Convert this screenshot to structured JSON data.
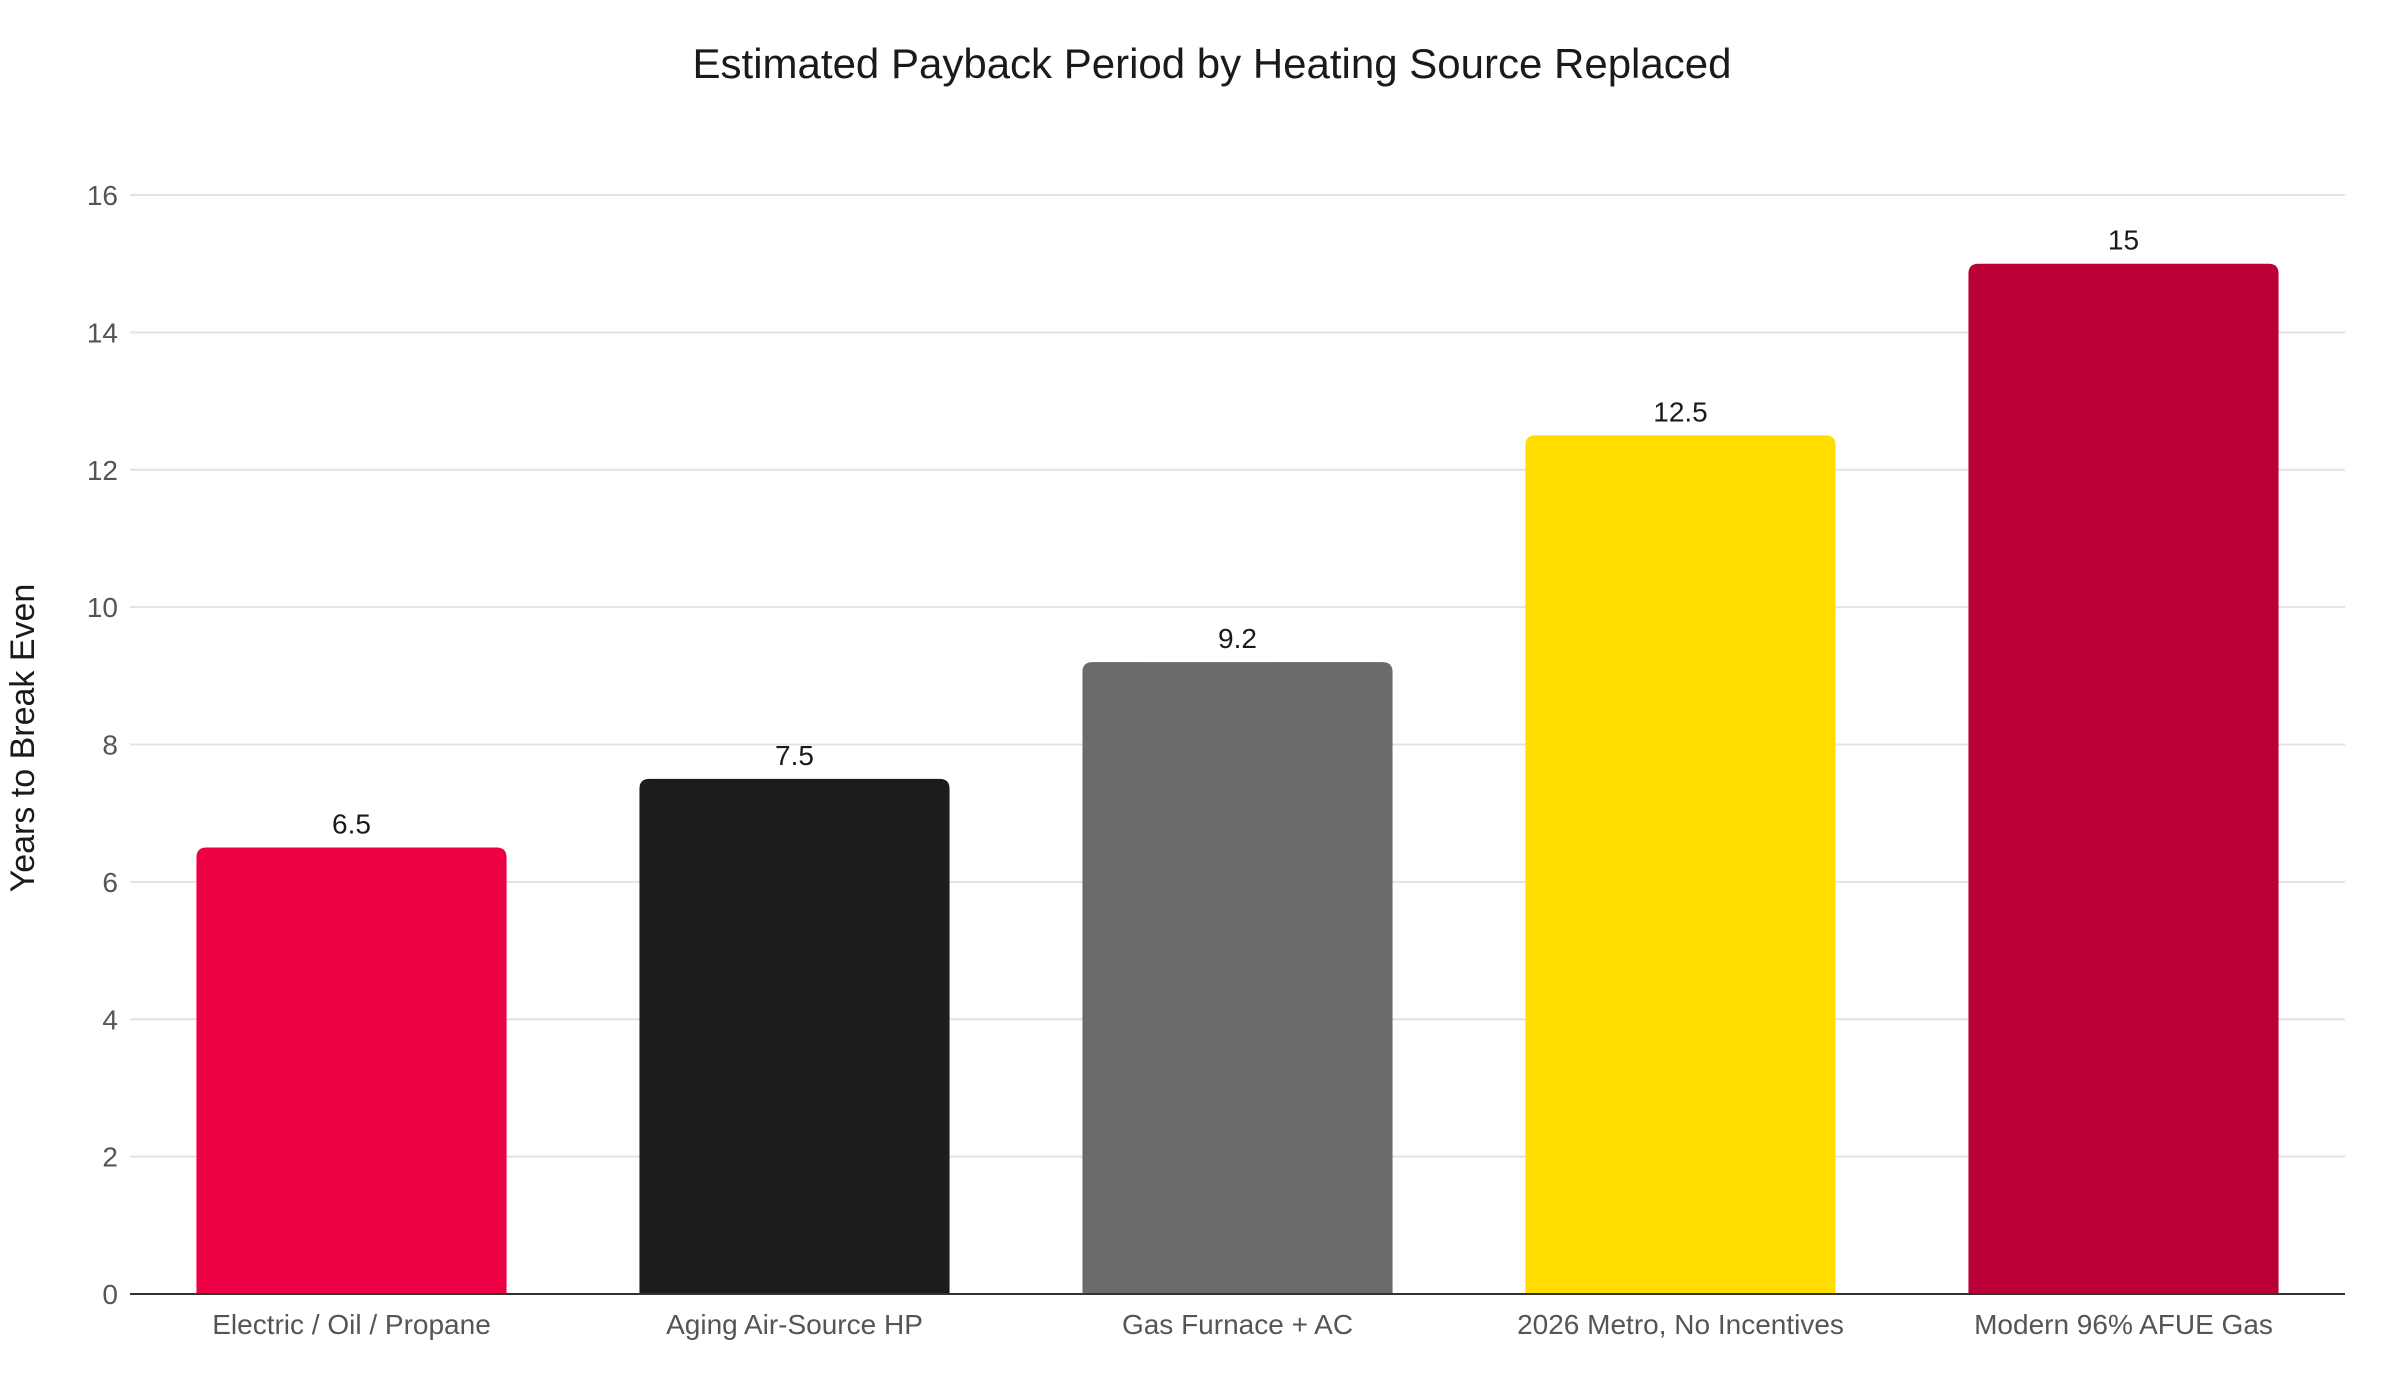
{
  "chart_data": {
    "type": "bar",
    "title": "Estimated Payback Period by Heating Source Replaced",
    "xlabel": "",
    "ylabel": "Years to Break Even",
    "categories": [
      "Electric / Oil / Propane",
      "Aging Air-Source HP",
      "Gas Furnace + AC",
      "2026 Metro, No Incentives",
      "Modern 96% AFUE Gas"
    ],
    "values": [
      6.5,
      7.5,
      9.2,
      12.5,
      15
    ],
    "data_labels": [
      "6.5",
      "7.5",
      "9.2",
      "12.5",
      "15"
    ],
    "bar_colors": [
      "#ee0044",
      "#1c1c1c",
      "#6b6b6b",
      "#ffdd00",
      "#ba0036"
    ],
    "ylim": [
      0,
      16
    ],
    "yticks": [
      0,
      2,
      4,
      6,
      8,
      10,
      12,
      14,
      16
    ],
    "grid": true,
    "legend": "none"
  }
}
